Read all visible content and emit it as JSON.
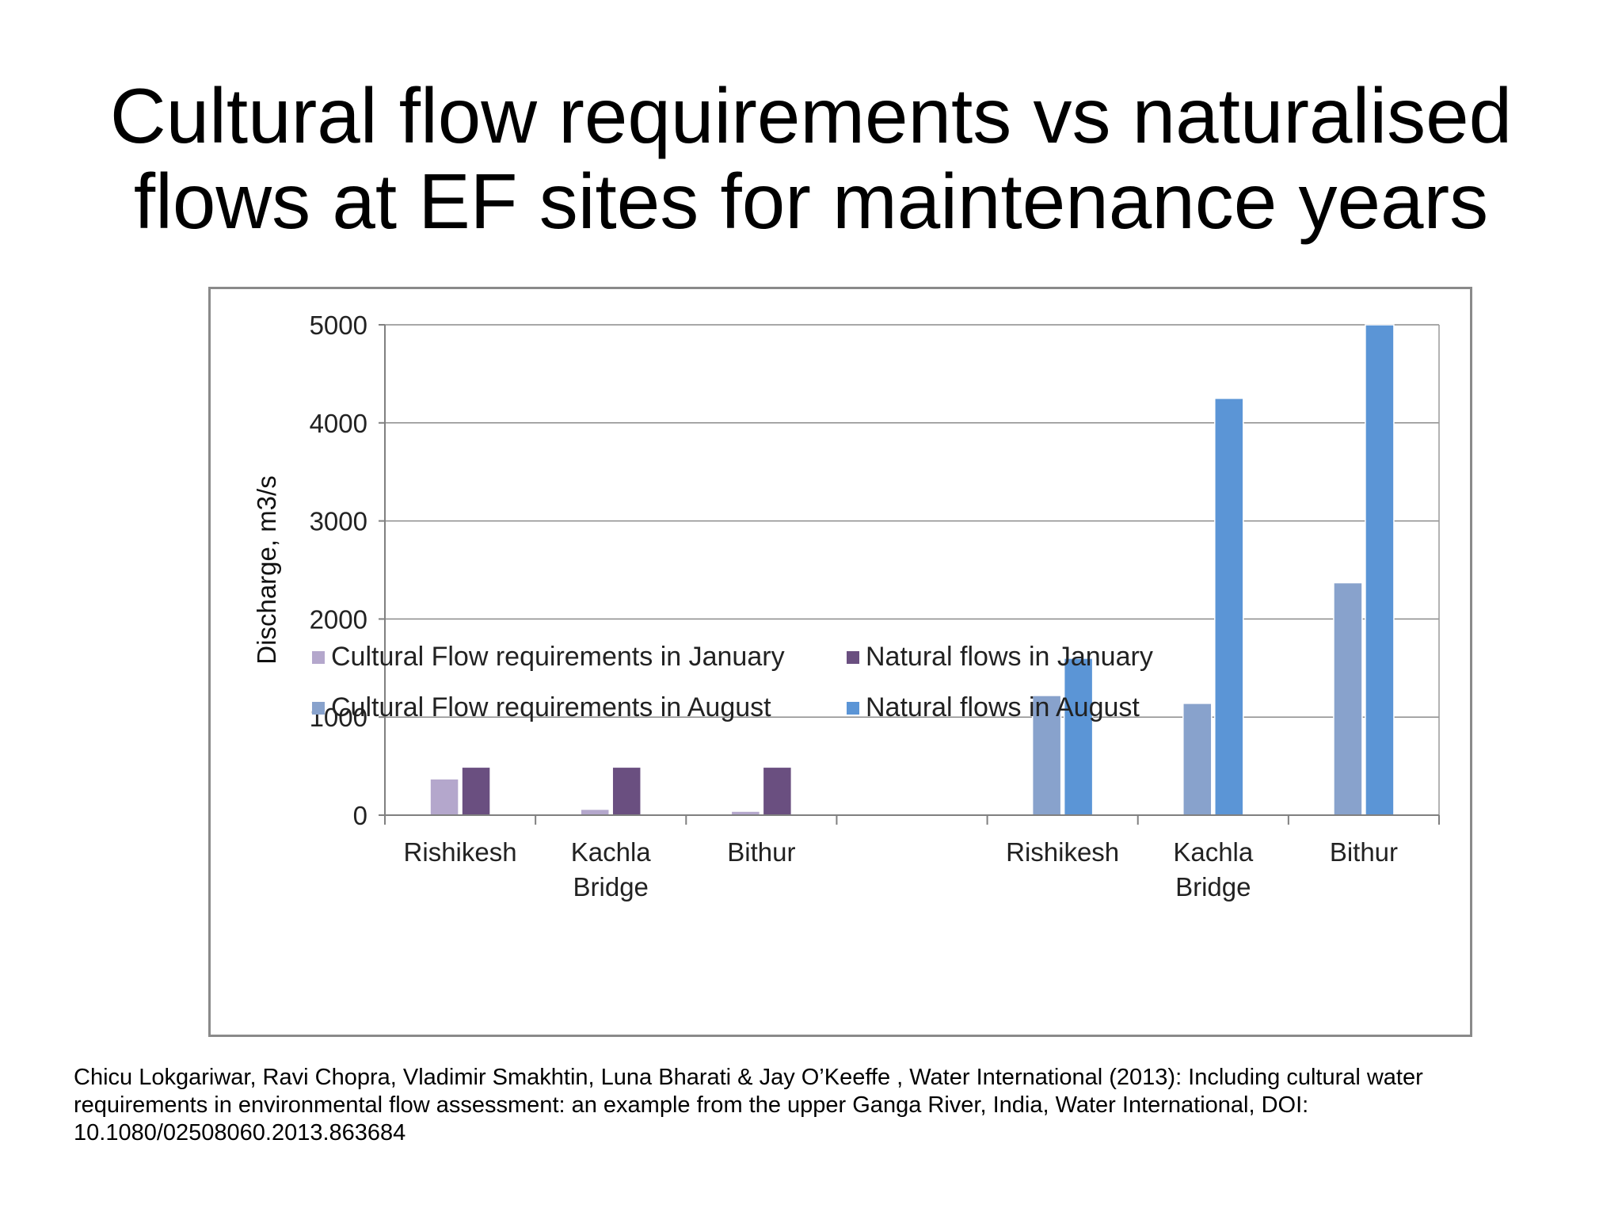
{
  "slide": {
    "title_line1": "Cultural flow requirements vs naturalised",
    "title_line2": "flows at EF sites for maintenance years",
    "citation_line1": "Chicu Lokgariwar, Ravi Chopra, Vladimir Smakhtin, Luna Bharati & Jay O’Keeffe , Water International (2013): Including cultural water",
    "citation_line2": "requirements in environmental flow assessment: an example from the upper Ganga River, India, Water International, DOI:",
    "citation_line3": "10.1080/02508060.2013.863684"
  },
  "chart_data": {
    "type": "bar",
    "title": "",
    "xlabel": "",
    "ylabel": "Discharge, m3/s",
    "ylim": [
      0,
      5000
    ],
    "yticks": [
      0,
      1000,
      2000,
      3000,
      4000,
      5000
    ],
    "grid": true,
    "legend_position": "bottom",
    "categories": [
      {
        "lines": [
          "Rishikesh"
        ]
      },
      {
        "lines": [
          "Kachla",
          "Bridge"
        ]
      },
      {
        "lines": [
          "Bithur"
        ]
      },
      {
        "lines": []
      },
      {
        "lines": [
          "Rishikesh"
        ]
      },
      {
        "lines": [
          "Kachla",
          "Bridge"
        ]
      },
      {
        "lines": [
          "Bithur"
        ]
      }
    ],
    "series": [
      {
        "name": "Cultural Flow requirements in January",
        "color": "#b4a7cc",
        "values": [
          370,
          60,
          40,
          null,
          null,
          null,
          null
        ]
      },
      {
        "name": "Natural flows in January",
        "color": "#6a4f80",
        "values": [
          490,
          490,
          490,
          null,
          null,
          null,
          null
        ]
      },
      {
        "name": "Cultural Flow requirements in August",
        "color": "#88a2cc",
        "values": [
          null,
          null,
          null,
          null,
          1220,
          1140,
          2370
        ]
      },
      {
        "name": "Natural flows in August",
        "color": "#5b95d6",
        "values": [
          null,
          null,
          null,
          null,
          1600,
          4250,
          5000
        ]
      }
    ]
  }
}
